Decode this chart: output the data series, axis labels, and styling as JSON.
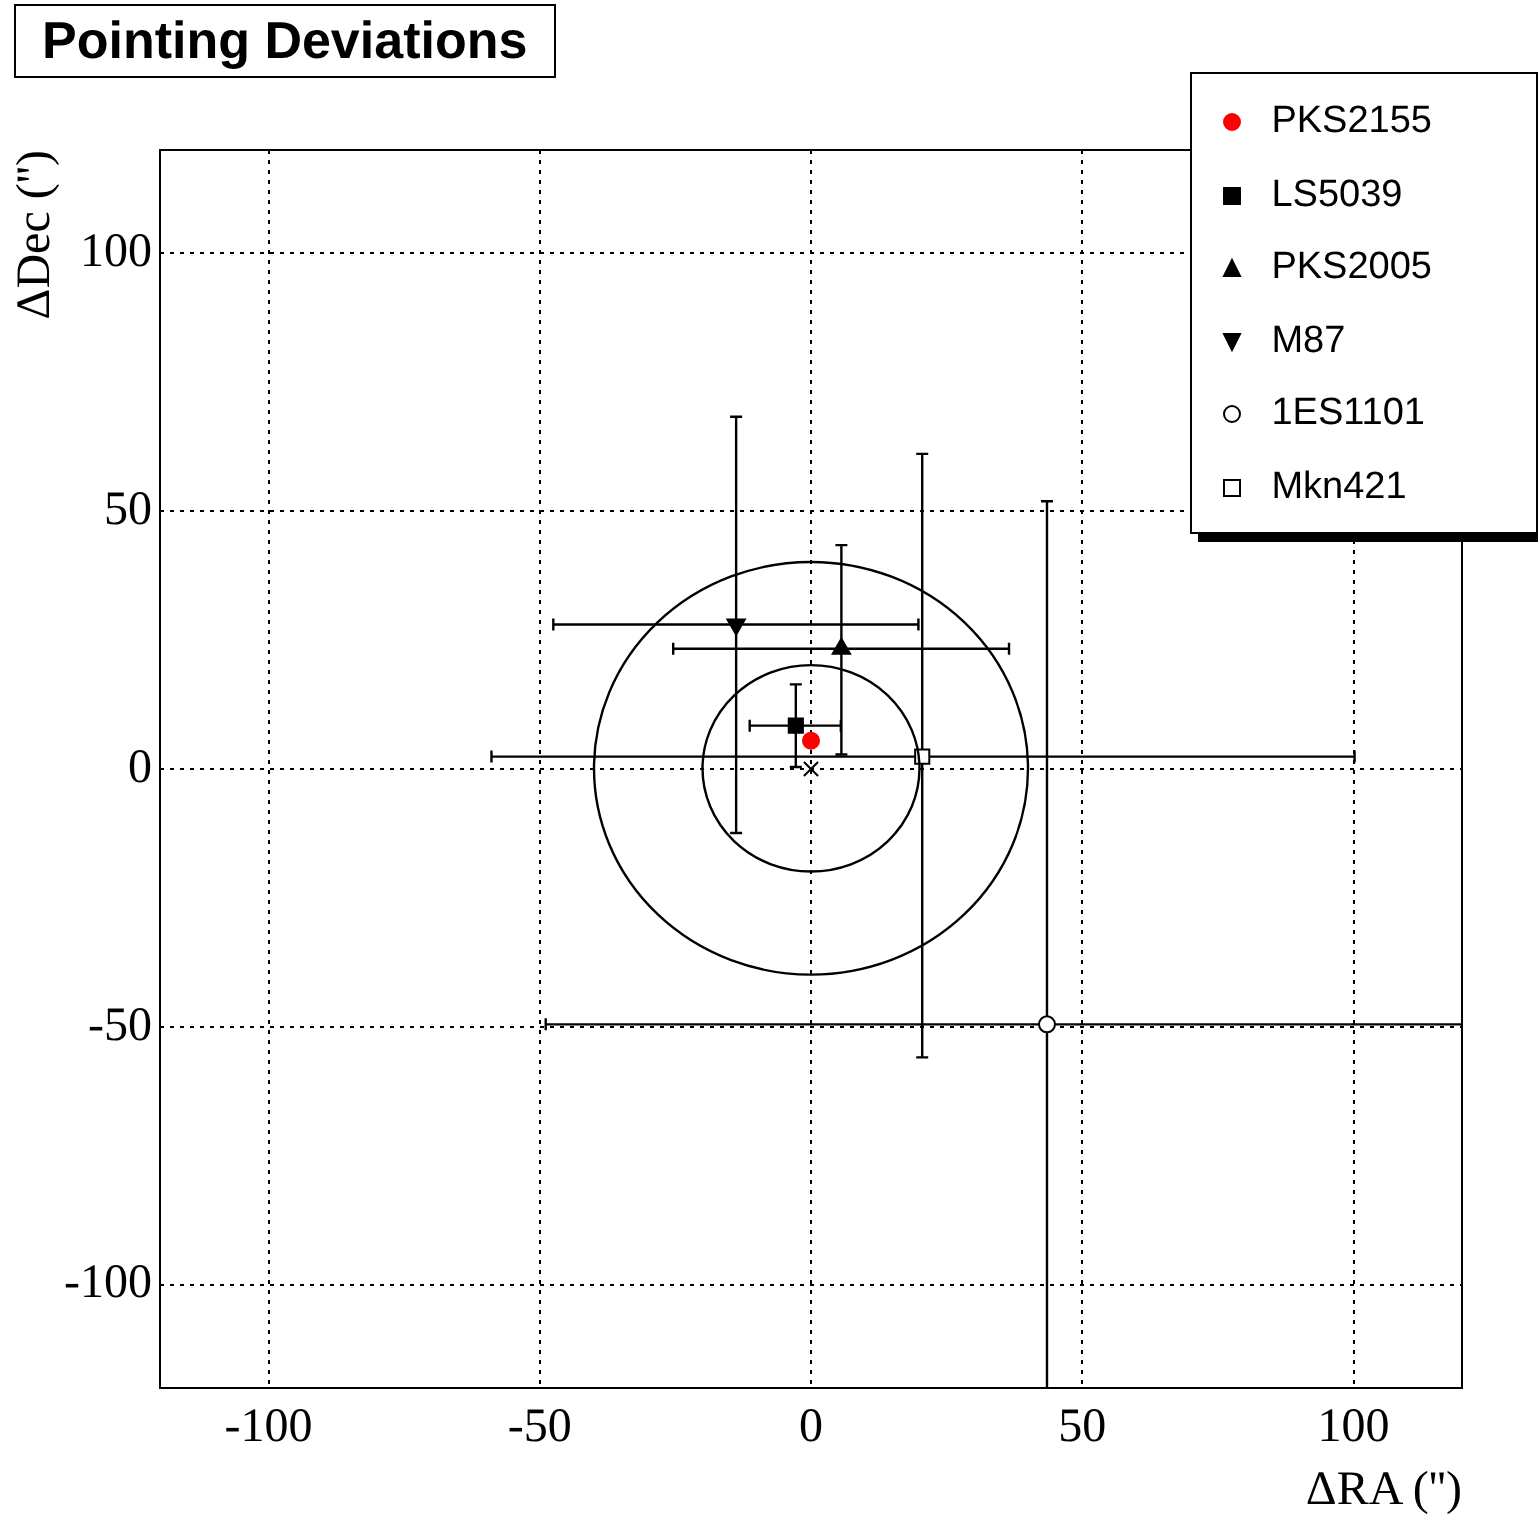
{
  "chart_data": {
    "type": "scatter",
    "title": "Pointing Deviations",
    "xlabel": "ΔRA ('')",
    "ylabel": "ΔDec ('')",
    "xlim": [
      -120,
      120
    ],
    "ylim": [
      -120,
      120
    ],
    "xticks": [
      -100,
      -50,
      0,
      50,
      100
    ],
    "yticks": [
      -100,
      -50,
      0,
      50,
      100
    ],
    "grid": true,
    "legend": "top right",
    "series": [
      {
        "name": "PKS2155",
        "color": "#ff0000",
        "marker": "circle",
        "x": [
          0
        ],
        "values": [
          5.5
        ]
      },
      {
        "name": "LS5039",
        "color": "#000000",
        "marker": "square",
        "x": [
          -2.8
        ],
        "values": [
          8.4
        ],
        "xerrors": [
          [
            -11.3,
            5.5
          ]
        ],
        "errors": [
          [
            0.4,
            16.4
          ]
        ]
      },
      {
        "name": "PKS2005",
        "color": "#000000",
        "marker": "triangle",
        "x": [
          5.6
        ],
        "values": [
          23.3
        ],
        "xerrors": [
          [
            -25.4,
            36.5
          ]
        ],
        "errors": [
          [
            2.8,
            43.4
          ]
        ]
      },
      {
        "name": "M87",
        "color": "#000000",
        "marker": "triangle-down",
        "x": [
          -13.8
        ],
        "values": [
          28
        ],
        "xerrors": [
          [
            -47.5,
            19.8
          ]
        ],
        "errors": [
          [
            -12.4,
            68.3
          ]
        ]
      },
      {
        "name": "1ES1101",
        "color": "#000000",
        "marker": "circle-open",
        "x": [
          43.5
        ],
        "values": [
          -49.5
        ],
        "xerrors": [
          [
            -48.9,
            120
          ]
        ],
        "errors": [
          [
            -120,
            51.9
          ]
        ]
      },
      {
        "name": "Mkn421",
        "color": "#000000",
        "marker": "square-open",
        "x": [
          20.5
        ],
        "values": [
          2.4
        ],
        "xerrors": [
          [
            -58.9,
            100.2
          ]
        ],
        "errors": [
          [
            -55.9,
            61.1
          ]
        ]
      },
      {
        "color": "#000000",
        "marker": "cross",
        "x": [
          0
        ],
        "values": [
          0
        ]
      }
    ]
  }
}
